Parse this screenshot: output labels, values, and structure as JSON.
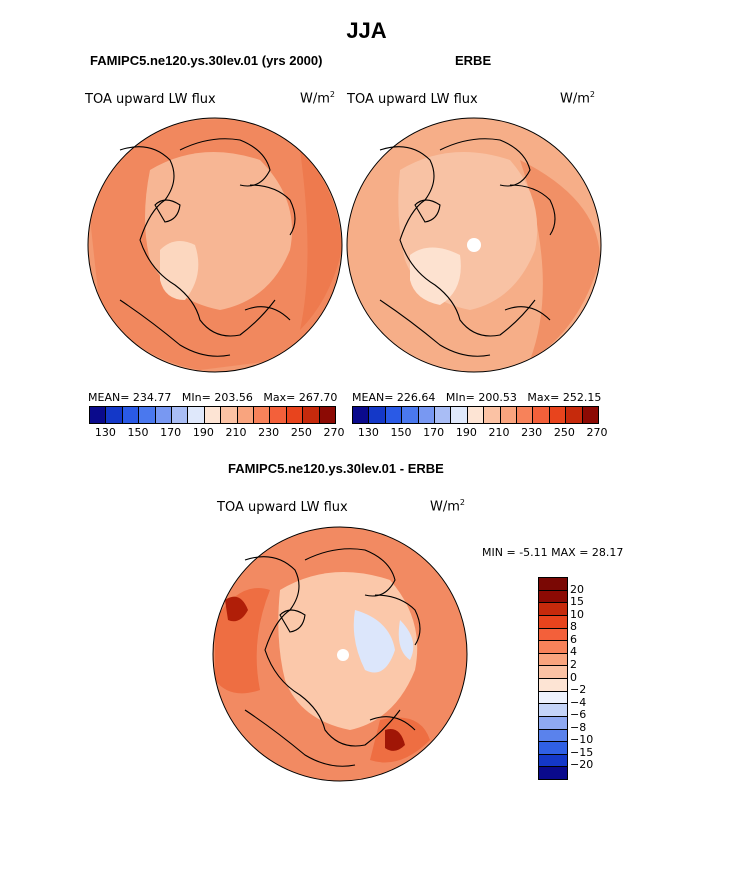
{
  "main_title": "JJA",
  "left_panel": {
    "title": "FAMIPC5.ne120.ys.30lev.01 (yrs 2000)",
    "variable": "TOA upward LW flux",
    "units": "W/m",
    "units_exp": "2",
    "stats": {
      "mean_label": "MEAN=",
      "mean": "234.77",
      "min_label": "MIn=",
      "min": "203.56",
      "max_label": "Max=",
      "max": "267.70"
    }
  },
  "right_panel": {
    "title": "ERBE",
    "variable": "TOA upward LW flux",
    "units": "W/m",
    "units_exp": "2",
    "stats": {
      "mean_label": "MEAN=",
      "mean": "226.64",
      "min_label": "MIn=",
      "min": "200.53",
      "max_label": "Max=",
      "max": "252.15"
    }
  },
  "top_colorbar": {
    "ticks": [
      "130",
      "150",
      "170",
      "190",
      "210",
      "230",
      "250",
      "270"
    ],
    "colors": [
      "#0a0a8c",
      "#1438c8",
      "#2a5ae6",
      "#4a78ee",
      "#7898f2",
      "#a9bdf5",
      "#dfe8fb",
      "#fde4d4",
      "#fbc2a4",
      "#f9a47e",
      "#f7825a",
      "#f3603a",
      "#e8441d",
      "#c62a0c",
      "#8c0a04"
    ]
  },
  "diff_panel": {
    "title": "FAMIPC5.ne120.ys.30lev.01 - ERBE",
    "variable": "TOA upward LW flux",
    "units": "W/m",
    "units_exp": "2",
    "min_label": "MIN =",
    "min": "-5.11",
    "max_label": "MAX =",
    "max": "28.17"
  },
  "diff_colorbar": {
    "labels": [
      "20",
      "15",
      "10",
      "8",
      "6",
      "4",
      "2",
      "0",
      "−2",
      "−4",
      "−6",
      "−8",
      "−10",
      "−15",
      "−20"
    ],
    "colors": [
      "#8c0a04",
      "#c62a0c",
      "#e8441d",
      "#f3603a",
      "#f7825a",
      "#f9a47e",
      "#fbc2a4",
      "#fde4d4",
      "#eef2fd",
      "#c4d4f8",
      "#8fa9f1",
      "#5a82ec",
      "#3060e4",
      "#1438c8",
      "#0a0a8c"
    ]
  },
  "maps": {
    "left": {
      "base": "#f39a72",
      "ocean": "#ee7a4e",
      "land": "#f7b694",
      "cold": "#fcd7bf"
    },
    "right": {
      "base": "#f6ae88",
      "ocean": "#f19066",
      "land": "#f8c2a4",
      "cold": "#fde2d0"
    },
    "diff": {
      "base": "#f28a62",
      "ocean": "#ee6e42",
      "land": "#fbc8aa",
      "cold": "#dce6fb"
    }
  }
}
